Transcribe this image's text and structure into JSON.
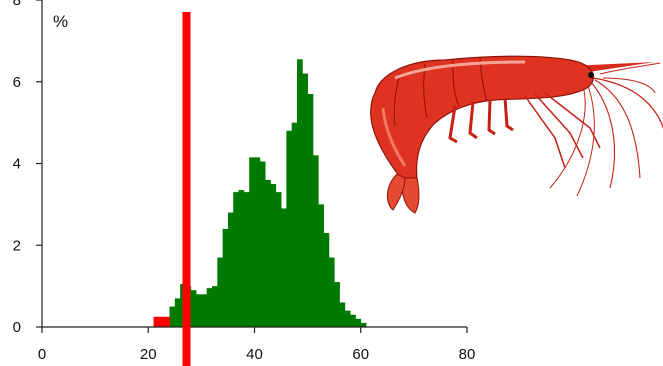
{
  "chart_data": {
    "type": "bar",
    "title": "",
    "xlabel": "",
    "ylabel": "%",
    "xlim": [
      0,
      80
    ],
    "ylim": [
      0,
      8
    ],
    "x_ticks": [
      0,
      20,
      40,
      60,
      80
    ],
    "y_ticks": [
      0,
      2,
      4,
      6,
      8
    ],
    "bin_width": 1,
    "grid": false,
    "legend": "none",
    "series": [
      {
        "color": "#007a00",
        "bins": [
          {
            "x": 23,
            "value": 0.2
          },
          {
            "x": 24,
            "value": 0.5
          },
          {
            "x": 25,
            "value": 0.7
          },
          {
            "x": 26,
            "value": 1.05
          },
          {
            "x": 27,
            "value": 1.0
          },
          {
            "x": 28,
            "value": 0.9
          },
          {
            "x": 29,
            "value": 0.8
          },
          {
            "x": 30,
            "value": 0.8
          },
          {
            "x": 31,
            "value": 0.95
          },
          {
            "x": 32,
            "value": 1.0
          },
          {
            "x": 33,
            "value": 1.7
          },
          {
            "x": 34,
            "value": 2.4
          },
          {
            "x": 35,
            "value": 2.8
          },
          {
            "x": 36,
            "value": 3.3
          },
          {
            "x": 37,
            "value": 3.35
          },
          {
            "x": 38,
            "value": 3.3
          },
          {
            "x": 39,
            "value": 4.15
          },
          {
            "x": 40,
            "value": 4.15
          },
          {
            "x": 41,
            "value": 4.05
          },
          {
            "x": 42,
            "value": 3.6
          },
          {
            "x": 43,
            "value": 3.5
          },
          {
            "x": 44,
            "value": 3.3
          },
          {
            "x": 45,
            "value": 2.9
          },
          {
            "x": 46,
            "value": 4.8
          },
          {
            "x": 47,
            "value": 5.0
          },
          {
            "x": 48,
            "value": 6.55
          },
          {
            "x": 49,
            "value": 6.2
          },
          {
            "x": 50,
            "value": 5.7
          },
          {
            "x": 51,
            "value": 4.2
          },
          {
            "x": 52,
            "value": 3.0
          },
          {
            "x": 53,
            "value": 2.3
          },
          {
            "x": 54,
            "value": 1.7
          },
          {
            "x": 55,
            "value": 1.1
          },
          {
            "x": 56,
            "value": 0.6
          },
          {
            "x": 57,
            "value": 0.4
          },
          {
            "x": 58,
            "value": 0.3
          },
          {
            "x": 59,
            "value": 0.2
          },
          {
            "x": 60,
            "value": 0.1
          }
        ]
      },
      {
        "color": "#ff0000",
        "bins": [
          {
            "x": 21,
            "value": 0.25
          },
          {
            "x": 22,
            "value": 0.25
          },
          {
            "x": 23,
            "value": 0.25
          }
        ]
      }
    ],
    "reference_line": {
      "x": 27.2,
      "color": "#ff0000"
    },
    "illustration": "red-shrimp-illustration"
  }
}
